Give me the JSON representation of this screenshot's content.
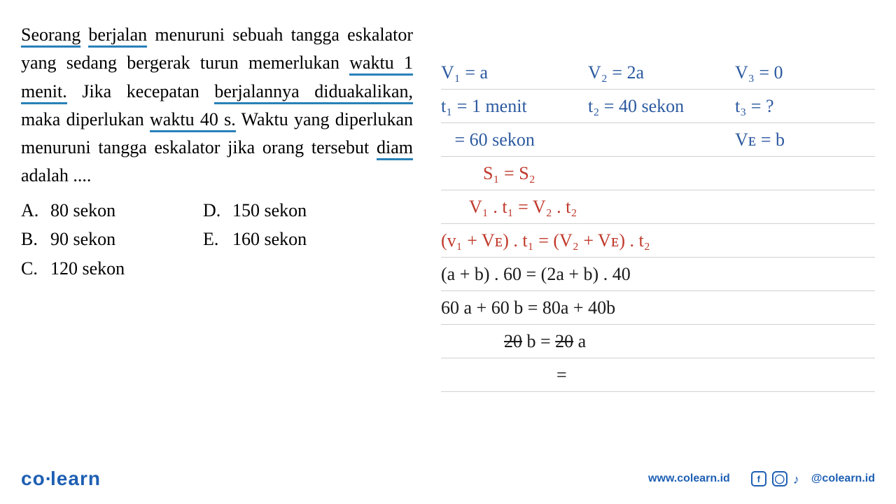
{
  "question": {
    "segments": [
      {
        "t": "Seorang",
        "u": true
      },
      {
        "t": "berjalan",
        "u": true
      },
      {
        "t": "menuruni sebuah tangga eskalator yang sedang bergerak turun memerlukan",
        "u": false
      },
      {
        "t": "waktu 1 menit.",
        "u": true
      },
      {
        "t": "Jika kecepatan",
        "u": false
      },
      {
        "t": "berjalannya diduakalikan,",
        "u": true
      },
      {
        "t": "maka diperlukan",
        "u": false
      },
      {
        "t": "waktu 40 s.",
        "u": true
      },
      {
        "t": "Waktu yang diperlukan menuruni tangga eskalator jika orang tersebut",
        "u": false
      },
      {
        "t": "diam",
        "u": true
      },
      {
        "t": "adalah ....",
        "u": false
      }
    ]
  },
  "options": {
    "a": "80 sekon",
    "b": "90 sekon",
    "c": "120 sekon",
    "d": "150 sekon",
    "e": "160 sekon"
  },
  "work": {
    "l1c1": "V₁ = a",
    "l1c2": "V₂ = 2a",
    "l1c3": "V₃ = 0",
    "l2c1": "t₁ = 1 menit",
    "l2c2": "t₂ = 40 sekon",
    "l2c3": "t₃ = ?",
    "l3c1": "   = 60 sekon",
    "l3c3": "Vᴇ = b",
    "l4": "S₁ = S₂",
    "l5": "V₁ . t₁ = V₂ . t₂",
    "l6": "(v₁ + Vᴇ) . t₁ = (V₂ + Vᴇ) . t₂",
    "l7": "(a + b) . 60 = (2a + b) . 40",
    "l8": "60 a + 60 b = 80a + 40b",
    "l9a": "20",
    "l9b": " b = ",
    "l9c": "20",
    "l9d": " a",
    "l10": "="
  },
  "footer": {
    "brand": "co learn",
    "url": "www.colearn.id",
    "handle": "@colearn.id"
  },
  "style": {
    "ink_blue": "#2c5aa0",
    "ink_red": "#c0392b",
    "ink_black": "#1a1a1a",
    "underline_color": "#2980b9",
    "brand_color": "#1e5fb3",
    "rule_color": "#d0d0d0",
    "question_fontsize": 26,
    "handwrite_fontsize": 26,
    "line_height": 48
  }
}
